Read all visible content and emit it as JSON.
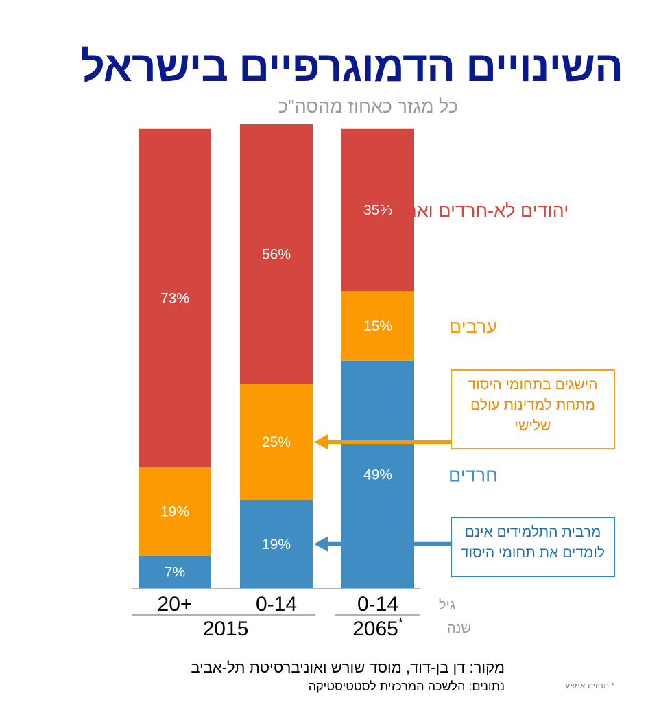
{
  "header": {
    "title": "השינויים הדמוגרפיים בישראל",
    "subtitle": "כל מגזר כאחוז מהסה\"כ"
  },
  "chart_data": {
    "type": "bar",
    "stacked": true,
    "title": "השינויים הדמוגרפיים בישראל",
    "subtitle": "כל מגזר כאחוז מהסה\"כ",
    "unit": "%",
    "ylim": [
      0,
      100
    ],
    "grid": false,
    "categories": [
      "20+",
      "0-14",
      "0-14"
    ],
    "years": [
      "2015",
      "2015",
      "2065*"
    ],
    "year_groups": [
      {
        "label": "2015",
        "columns": [
          0,
          1
        ]
      },
      {
        "label": "2065",
        "marker": "*",
        "columns": [
          2
        ]
      }
    ],
    "axis_captions": {
      "age": "גיל",
      "year": "שנה"
    },
    "series": [
      {
        "name": "חרדים",
        "color": "#3f8dc3",
        "values": [
          7,
          19,
          49
        ]
      },
      {
        "name": "ערבים",
        "color": "#fb9a01",
        "values": [
          19,
          25,
          15
        ]
      },
      {
        "name": "יהודים לא-חרדים ואחרים",
        "color": "#d44740",
        "values": [
          73,
          56,
          35
        ]
      }
    ],
    "value_labels": [
      [
        "7%",
        "19%",
        "49%"
      ],
      [
        "19%",
        "25%",
        "15%"
      ],
      [
        "73%",
        "56%",
        "35%"
      ]
    ],
    "legend_position": "right"
  },
  "callouts": {
    "orange": {
      "lines": [
        "הישגים בתחומי היסוד",
        "מתחת למדינות עולם",
        "שלישי"
      ],
      "color": "#f7a21b"
    },
    "blue": {
      "lines": [
        "מרבית התלמידים אינם",
        "לומדים את תחומי היסוד"
      ],
      "color": "#2f86c2"
    }
  },
  "footer": {
    "source": "מקור:  דן בן-דוד, מוסד שורש ואוניברסיטת תל-אביב",
    "data_note": "נתונים: הלשכה המרכזית לסטטיסטיקה",
    "footnote": "* תחזית אמצע"
  }
}
